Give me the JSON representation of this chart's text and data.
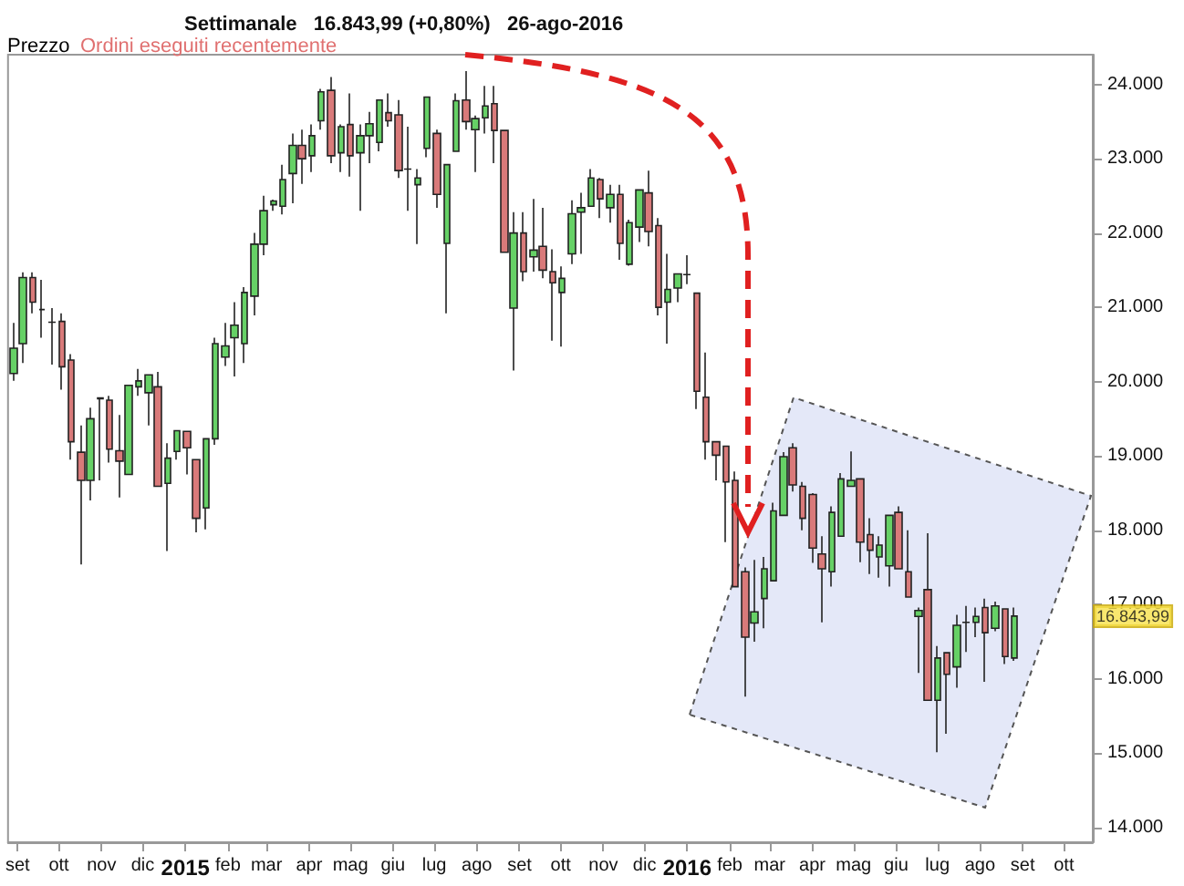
{
  "chart_data": {
    "type": "candlestick",
    "title": "Settimanale   16.843,99 (+0,80%)   26-ago-2016",
    "annotations": [
      "Prezzo",
      "Ordini eseguiti recentemente",
      "16.843,99"
    ],
    "colors": [
      "#66d166",
      "#66d166",
      "#d97a7a",
      "#222222",
      "#222222",
      "#d97a7a",
      "#d97a7a",
      "#d97a7a",
      "#66d166",
      "#d97a7a",
      "#d97a7a",
      "#d97a7a",
      "#66d166",
      "#66d166",
      "#66d166",
      "#d97a7a",
      "#66d166",
      "#66d166",
      "#d97a7a",
      "#d97a7a",
      "#66d166",
      "#66d166",
      "#66d166",
      "#66d166",
      "#66d166",
      "#66d166",
      "#66d166",
      "#66d166",
      "#66d166",
      "#66d166",
      "#d97a7a",
      "#66d166",
      "#66d166",
      "#d97a7a",
      "#66d166",
      "#d97a7a",
      "#66d166",
      "#66d166",
      "#66d166",
      "#d97a7a",
      "#d97a7a",
      "#222222",
      "#66d166",
      "#66d166",
      "#d97a7a",
      "#66d166",
      "#66d166",
      "#d97a7a",
      "#66d166",
      "#66d166",
      "#d97a7a",
      "#d97a7a",
      "#66d166",
      "#d97a7a",
      "#66d166",
      "#d97a7a",
      "#d97a7a",
      "#66d166",
      "#66d166",
      "#66d166",
      "#66d166",
      "#d97a7a",
      "#66d166",
      "#d97a7a",
      "#66d166",
      "#66d166",
      "#d97a7a",
      "#d97a7a",
      "#66d166",
      "#66d166",
      "#222222",
      "#d97a7a",
      "#d97a7a",
      "#d97a7a",
      "#d97a7a",
      "#d97a7a",
      "#d97a7a",
      "#66d166",
      "#66d166",
      "#66d166",
      "#66d166",
      "#d97a7a",
      "#d97a7a",
      "#d97a7a",
      "#d97a7a",
      "#66d166",
      "#66d166",
      "#66d166",
      "#d97a7a",
      "#d97a7a",
      "#66d166",
      "#66d166",
      "#d97a7a",
      "#d97a7a",
      "#66d166",
      "#d97a7a",
      "#66d166",
      "#d97a7a",
      "#66d166",
      "#222222",
      "#66d166",
      "#d97a7a",
      "#66d166",
      "#d97a7a",
      "#66d166"
    ],
    "x": [
      "2014-08-29",
      "2014-09-05",
      "2014-09-12",
      "2014-09-19",
      "2014-09-26",
      "2014-10-03",
      "2014-10-10",
      "2014-10-17",
      "2014-10-24",
      "2014-10-31",
      "2014-11-07",
      "2014-11-14",
      "2014-11-21",
      "2014-11-28",
      "2014-12-05",
      "2014-12-12",
      "2014-12-19",
      "2014-12-26",
      "2015-01-02",
      "2015-01-09",
      "2015-01-16",
      "2015-01-23",
      "2015-01-30",
      "2015-02-06",
      "2015-02-13",
      "2015-02-20",
      "2015-02-27",
      "2015-03-06",
      "2015-03-13",
      "2015-03-20",
      "2015-03-27",
      "2015-04-03",
      "2015-04-10",
      "2015-04-17",
      "2015-04-24",
      "2015-05-01",
      "2015-05-08",
      "2015-05-15",
      "2015-05-22",
      "2015-05-29",
      "2015-06-05",
      "2015-06-12",
      "2015-06-19",
      "2015-06-26",
      "2015-07-03",
      "2015-07-10",
      "2015-07-17",
      "2015-07-24",
      "2015-07-31",
      "2015-08-07",
      "2015-08-14",
      "2015-08-21",
      "2015-08-28",
      "2015-09-04",
      "2015-09-11",
      "2015-09-18",
      "2015-09-25",
      "2015-10-02",
      "2015-10-09",
      "2015-10-16",
      "2015-10-23",
      "2015-10-30",
      "2015-11-06",
      "2015-11-13",
      "2015-11-20",
      "2015-11-27",
      "2015-12-04",
      "2015-12-11",
      "2015-12-18",
      "2015-12-25",
      "2016-01-01",
      "2016-01-08",
      "2016-01-15",
      "2016-01-22",
      "2016-01-29",
      "2016-02-05",
      "2016-02-12",
      "2016-02-19",
      "2016-02-26",
      "2016-03-04",
      "2016-03-11",
      "2016-03-18",
      "2016-03-25",
      "2016-04-01",
      "2016-04-08",
      "2016-04-15",
      "2016-04-22",
      "2016-04-29",
      "2016-05-06",
      "2016-05-13",
      "2016-05-20",
      "2016-05-27",
      "2016-06-03",
      "2016-06-10",
      "2016-06-17",
      "2016-06-24",
      "2016-07-01",
      "2016-07-08",
      "2016-07-15",
      "2016-07-22",
      "2016-07-29",
      "2016-08-05",
      "2016-08-12",
      "2016-08-19",
      "2016-08-26"
    ],
    "ohlc": [
      [
        20110,
        20790,
        20010,
        20450
      ],
      [
        20510,
        21470,
        20250,
        21400
      ],
      [
        21400,
        21470,
        20920,
        21070
      ],
      [
        20970,
        21370,
        20590,
        20970
      ],
      [
        20800,
        20990,
        20230,
        20800
      ],
      [
        20810,
        20920,
        19890,
        20200
      ],
      [
        20290,
        20370,
        18950,
        19190
      ],
      [
        19050,
        19410,
        17540,
        18670
      ],
      [
        18670,
        19650,
        18400,
        19500
      ],
      [
        19780,
        19780,
        18670,
        19770
      ],
      [
        19750,
        19810,
        18910,
        19090
      ],
      [
        19070,
        19550,
        18440,
        18930
      ],
      [
        18750,
        19950,
        18750,
        19950
      ],
      [
        19930,
        20170,
        19810,
        20010
      ],
      [
        19850,
        20090,
        19410,
        20090
      ],
      [
        19930,
        20130,
        18590,
        18590
      ],
      [
        18630,
        19170,
        17720,
        18970
      ],
      [
        19060,
        19340,
        18950,
        19340
      ],
      [
        19330,
        19330,
        18750,
        19110
      ],
      [
        18950,
        18950,
        17970,
        18160
      ],
      [
        18300,
        19230,
        18010,
        19230
      ],
      [
        19230,
        20590,
        19150,
        20510
      ],
      [
        20330,
        20790,
        20210,
        20480
      ],
      [
        20590,
        21070,
        20070,
        20760
      ],
      [
        20510,
        21270,
        20250,
        21200
      ],
      [
        21150,
        22000,
        20890,
        21850
      ],
      [
        21850,
        22500,
        21700,
        22300
      ],
      [
        22380,
        22450,
        22300,
        22430
      ],
      [
        22360,
        22920,
        22250,
        22720
      ],
      [
        22800,
        23340,
        22400,
        23180
      ],
      [
        23180,
        23390,
        22660,
        23000
      ],
      [
        23040,
        23460,
        22820,
        23310
      ],
      [
        23510,
        23940,
        23390,
        23900
      ],
      [
        23920,
        24100,
        22940,
        23040
      ],
      [
        23080,
        23460,
        22820,
        23430
      ],
      [
        23460,
        23880,
        22760,
        23040
      ],
      [
        23080,
        23460,
        22300,
        23310
      ],
      [
        23310,
        23630,
        22940,
        23470
      ],
      [
        23220,
        23790,
        23100,
        23790
      ],
      [
        23620,
        23880,
        23430,
        23510
      ],
      [
        23590,
        23790,
        22740,
        22840
      ],
      [
        22860,
        23430,
        22300,
        22860
      ],
      [
        22650,
        22860,
        21850,
        22740
      ],
      [
        23140,
        23830,
        23020,
        23830
      ],
      [
        23340,
        23390,
        22340,
        22520
      ],
      [
        21860,
        22920,
        20920,
        22920
      ],
      [
        23100,
        23880,
        23100,
        23780
      ],
      [
        23790,
        24180,
        23390,
        23500
      ],
      [
        23390,
        23580,
        22820,
        23540
      ],
      [
        23550,
        23980,
        23340,
        23710
      ],
      [
        23740,
        23980,
        22940,
        23380
      ],
      [
        23380,
        23380,
        21740,
        21740
      ],
      [
        20990,
        22280,
        20150,
        22000
      ],
      [
        22000,
        22280,
        21350,
        21480
      ],
      [
        21680,
        22460,
        21480,
        21770
      ],
      [
        21820,
        22340,
        21390,
        21500
      ],
      [
        21480,
        21780,
        20550,
        21330
      ],
      [
        21200,
        21550,
        20470,
        21390
      ],
      [
        21720,
        22440,
        21580,
        22260
      ],
      [
        22280,
        22540,
        21720,
        22340
      ],
      [
        22360,
        22860,
        22360,
        22740
      ],
      [
        22720,
        22740,
        22200,
        22460
      ],
      [
        22340,
        22650,
        22140,
        22520
      ],
      [
        22520,
        22650,
        21640,
        21860
      ],
      [
        21580,
        22180,
        21560,
        22140
      ],
      [
        22080,
        22580,
        21880,
        22580
      ],
      [
        22540,
        22840,
        21820,
        22020
      ],
      [
        22100,
        22200,
        20890,
        21000
      ],
      [
        21070,
        21720,
        20510,
        21240
      ],
      [
        21260,
        21450,
        21070,
        21450
      ],
      [
        21440,
        21700,
        21310,
        21440
      ],
      [
        21190,
        21190,
        19630,
        19870
      ],
      [
        19790,
        20390,
        18950,
        19190
      ],
      [
        19190,
        19190,
        18670,
        19010
      ],
      [
        19130,
        19130,
        17840,
        18650
      ],
      [
        18670,
        18790,
        17240,
        17240
      ],
      [
        17440,
        17500,
        15760,
        16560
      ],
      [
        16750,
        17600,
        16500,
        16900
      ],
      [
        17080,
        17640,
        16680,
        17480
      ],
      [
        17320,
        18370,
        17320,
        18260
      ],
      [
        18200,
        19050,
        18200,
        18990
      ],
      [
        19110,
        19170,
        18520,
        18610
      ],
      [
        18590,
        18650,
        18000,
        18160
      ],
      [
        18480,
        18500,
        17560,
        17760
      ],
      [
        17680,
        17920,
        16760,
        17480
      ],
      [
        17440,
        18320,
        17240,
        18240
      ],
      [
        17920,
        18770,
        17920,
        18690
      ],
      [
        18590,
        19060,
        18590,
        18670
      ],
      [
        18690,
        18690,
        17570,
        17840
      ],
      [
        17940,
        18160,
        17410,
        17730
      ],
      [
        17640,
        17920,
        17360,
        17800
      ],
      [
        17520,
        18200,
        17240,
        18200
      ],
      [
        18240,
        18320,
        17480,
        17480
      ],
      [
        17440,
        18000,
        17100,
        17100
      ],
      [
        16840,
        16960,
        16080,
        16920
      ],
      [
        17200,
        17960,
        15710,
        15710
      ],
      [
        15710,
        16440,
        15010,
        16280
      ],
      [
        16350,
        16350,
        15260,
        16060
      ],
      [
        16160,
        16860,
        15880,
        16720
      ],
      [
        16760,
        16980,
        16360,
        16760
      ],
      [
        16760,
        16960,
        16560,
        16840
      ],
      [
        16960,
        17080,
        15960,
        16620
      ],
      [
        16680,
        17040,
        16640,
        16980
      ],
      [
        16940,
        16940,
        16200,
        16300
      ],
      [
        16280,
        16960,
        16240,
        16843.99
      ]
    ],
    "xlim": [
      "2014-08-25",
      "2016-10-22"
    ],
    "xticks": [
      {
        "value": "2014-09-01",
        "label": "set"
      },
      {
        "value": "2014-10-01",
        "label": "ott"
      },
      {
        "value": "2014-11-01",
        "label": "nov"
      },
      {
        "value": "2014-12-01",
        "label": "dic"
      },
      {
        "value": "2015-01-01",
        "label": "2015"
      },
      {
        "value": "2015-02-01",
        "label": "feb"
      },
      {
        "value": "2015-03-01",
        "label": "mar"
      },
      {
        "value": "2015-04-01",
        "label": "apr"
      },
      {
        "value": "2015-05-01",
        "label": "mag"
      },
      {
        "value": "2015-06-01",
        "label": "giu"
      },
      {
        "value": "2015-07-01",
        "label": "lug"
      },
      {
        "value": "2015-08-01",
        "label": "ago"
      },
      {
        "value": "2015-09-01",
        "label": "set"
      },
      {
        "value": "2015-10-01",
        "label": "ott"
      },
      {
        "value": "2015-11-01",
        "label": "nov"
      },
      {
        "value": "2015-12-01",
        "label": "dic"
      },
      {
        "value": "2016-01-01",
        "label": "2016"
      },
      {
        "value": "2016-02-01",
        "label": "feb"
      },
      {
        "value": "2016-03-01",
        "label": "mar"
      },
      {
        "value": "2016-04-01",
        "label": "apr"
      },
      {
        "value": "2016-05-01",
        "label": "mag"
      },
      {
        "value": "2016-06-01",
        "label": "giu"
      },
      {
        "value": "2016-07-01",
        "label": "lug"
      },
      {
        "value": "2016-08-01",
        "label": "ago"
      },
      {
        "value": "2016-09-01",
        "label": "set"
      },
      {
        "value": "2016-10-01",
        "label": "ott"
      }
    ],
    "ylim": [
      13800,
      24400
    ],
    "yticks": [
      {
        "value": 14000,
        "label": "14.000"
      },
      {
        "value": 15000,
        "label": "15.000"
      },
      {
        "value": 16000,
        "label": "16.000"
      },
      {
        "value": 17000,
        "label": "17.000"
      },
      {
        "value": 18000,
        "label": "18.000"
      },
      {
        "value": 19000,
        "label": "19.000"
      },
      {
        "value": 20000,
        "label": "20.000"
      },
      {
        "value": 21000,
        "label": "21.000"
      },
      {
        "value": 22000,
        "label": "22.000"
      },
      {
        "value": 23000,
        "label": "23.000"
      },
      {
        "value": 24000,
        "label": "24.000"
      }
    ],
    "grid": false
  }
}
